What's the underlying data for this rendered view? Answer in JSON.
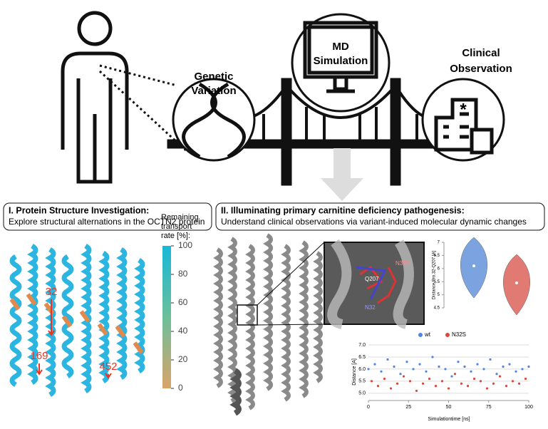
{
  "header": {
    "genetic": [
      "Genetic",
      "Variation"
    ],
    "md": [
      "MD",
      "Simulation"
    ],
    "clinical": [
      "Clinical",
      "Observation"
    ]
  },
  "panels": [
    {
      "title": "I. Protein Structure Investigation:",
      "subtitle": "Explore structural alternations in the OCTN2 protein"
    },
    {
      "title": "II. Illuminating primary carnitine deficiency pathogenesis:",
      "subtitle": "Understand clinical observations via variant-induced molecular dynamic changes"
    }
  ],
  "colorbar": {
    "title": [
      "Remaining",
      "transport",
      "rate [%]:"
    ],
    "ylim": [
      0,
      100
    ],
    "yticks": [
      0,
      20,
      40,
      60,
      80,
      100
    ]
  },
  "residues": [
    "32",
    "169",
    "452"
  ],
  "inset_labels": [
    "N32S",
    "Q207",
    "N32"
  ],
  "chart_data": [
    {
      "type": "violin",
      "ylabel": "Distance Pro.32-Q207 [A]",
      "ylim": [
        4.5,
        7
      ],
      "yticks": [
        4.5,
        5,
        5.5,
        6,
        6.5,
        7
      ],
      "series": [
        {
          "color": "#7ba3e0",
          "median": 6.1
        },
        {
          "color": "#e07a72",
          "median": 5.45
        }
      ]
    },
    {
      "type": "scatter",
      "xlabel": "Simulationtime [ns]",
      "ylabel": "Distance [A]",
      "xlim": [
        0,
        100
      ],
      "ylim": [
        4.7,
        7
      ],
      "xticks": [
        0,
        25,
        50,
        75,
        100
      ],
      "yticks": [
        {
          "value": 5,
          "label": "5.0"
        },
        {
          "value": 5.5,
          "label": "5.5"
        },
        {
          "value": 6,
          "label": "6.0"
        },
        {
          "value": 6.5,
          "label": "6.5"
        },
        {
          "value": 7,
          "label": "7.0"
        }
      ],
      "series": [
        {
          "name": "wt",
          "color": "#4a86e8",
          "x": [
            0,
            4,
            8,
            12,
            16,
            20,
            24,
            28,
            32,
            36,
            40,
            44,
            48,
            52,
            56,
            60,
            64,
            68,
            72,
            76,
            80,
            84,
            88,
            92,
            96,
            100
          ],
          "values": [
            6.0,
            6.2,
            5.9,
            6.4,
            6.1,
            5.8,
            6.3,
            6.0,
            6.2,
            5.9,
            6.5,
            6.1,
            6.0,
            5.7,
            6.3,
            6.1,
            5.9,
            6.2,
            6.0,
            6.4,
            5.8,
            6.1,
            6.2,
            5.9,
            6.0,
            6.1
          ]
        },
        {
          "name": "N32S",
          "color": "#e0463a",
          "x": [
            2,
            6,
            10,
            14,
            18,
            22,
            26,
            30,
            34,
            38,
            42,
            46,
            50,
            54,
            58,
            62,
            66,
            70,
            74,
            78,
            82,
            86,
            90,
            94,
            98
          ],
          "values": [
            5.5,
            5.3,
            5.6,
            5.2,
            5.4,
            5.7,
            5.5,
            5.1,
            5.4,
            5.6,
            5.3,
            5.5,
            5.2,
            5.8,
            5.4,
            5.3,
            5.6,
            5.5,
            5.2,
            5.4,
            5.7,
            5.3,
            5.5,
            5.4,
            5.6
          ]
        }
      ]
    }
  ]
}
